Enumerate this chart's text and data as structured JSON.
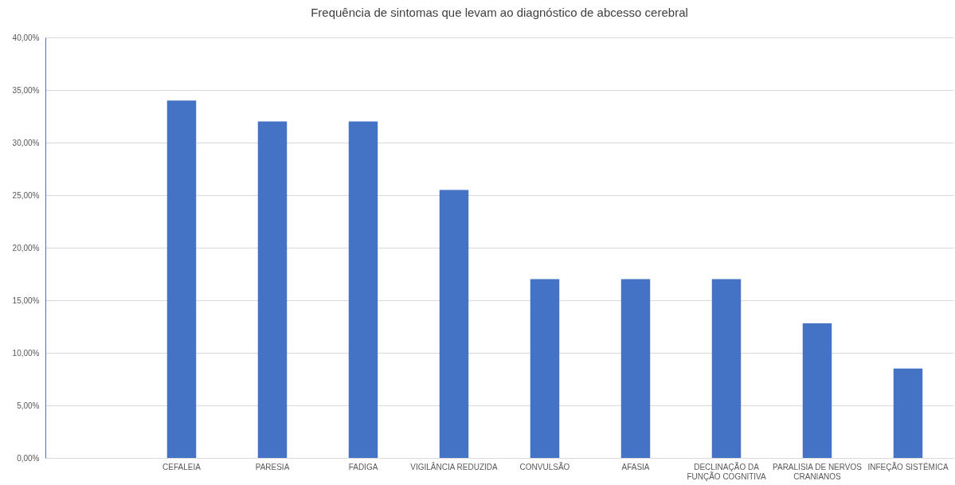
{
  "chart_data": {
    "type": "bar",
    "title": "Frequência de sintomas que levam ao diagnóstico de abcesso cerebral",
    "categories": [
      null,
      "CEFALEIA",
      "PARESIA",
      "FADIGA",
      "VIGILÂNCIA REDUZIDA",
      "CONVULSÃO",
      "AFASIA",
      "DECLINAÇÃO DA FUNÇÃO COGNITIVA",
      "PARALISIA DE NERVOS CRANIANOS",
      "INFEÇÃO SISTÉMICA"
    ],
    "values": [
      null,
      34,
      32,
      32,
      25.5,
      17,
      17,
      17,
      12.8,
      8.5
    ],
    "color": "#4472c4",
    "ylim": [
      0,
      40
    ],
    "yticks": [
      {
        "value": 0,
        "label": "0,00%"
      },
      {
        "value": 5,
        "label": "5,00%"
      },
      {
        "value": 10,
        "label": "10,00%"
      },
      {
        "value": 15,
        "label": "15,00%"
      },
      {
        "value": 20,
        "label": "20,00%"
      },
      {
        "value": 25,
        "label": "25,00%"
      },
      {
        "value": 30,
        "label": "30,00%"
      },
      {
        "value": 35,
        "label": "35,00%"
      },
      {
        "value": 40,
        "label": "40,00%"
      }
    ],
    "grid": "y"
  }
}
